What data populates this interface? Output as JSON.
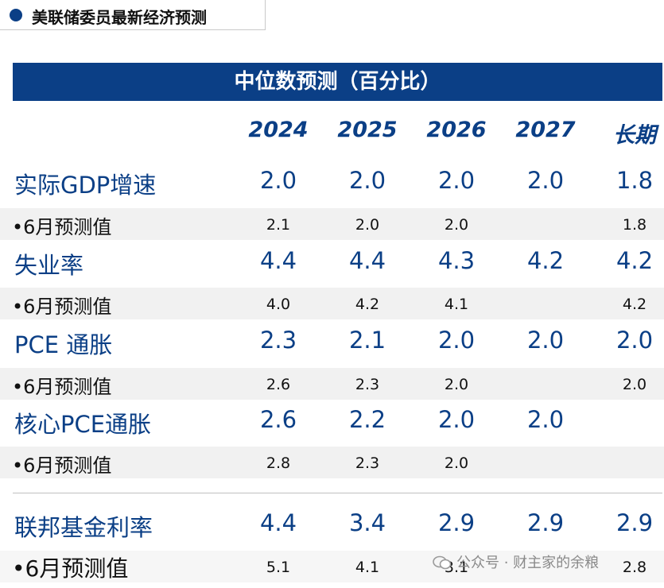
{
  "top_title": "美联储委员最新经济预测",
  "header": "中位数预测（百分比）",
  "columns": [
    "2024",
    "2025",
    "2026",
    "2027",
    "长期"
  ],
  "rows": [
    {
      "label": "实际GDP增速",
      "values": [
        "2.0",
        "2.0",
        "2.0",
        "2.0",
        "1.8"
      ]
    },
    {
      "label": "•6月预测值",
      "values": [
        "2.1",
        "2.0",
        "2.0",
        "",
        "1.8"
      ]
    },
    {
      "label": "失业率",
      "values": [
        "4.4",
        "4.4",
        "4.3",
        "4.2",
        "4.2"
      ]
    },
    {
      "label": "•6月预测值",
      "values": [
        "4.0",
        "4.2",
        "4.1",
        "",
        "4.2"
      ]
    },
    {
      "label": "PCE 通胀",
      "values": [
        "2.3",
        "2.1",
        "2.0",
        "2.0",
        "2.0"
      ]
    },
    {
      "label": "•6月预测值",
      "values": [
        "2.6",
        "2.3",
        "2.0",
        "",
        "2.0"
      ]
    },
    {
      "label": "核心PCE通胀",
      "values": [
        "2.6",
        "2.2",
        "2.0",
        "2.0",
        ""
      ]
    },
    {
      "label": "•6月预测值",
      "values": [
        "2.8",
        "2.3",
        "2.0",
        "",
        ""
      ]
    },
    {
      "label": "联邦基金利率",
      "values": [
        "4.4",
        "3.4",
        "2.9",
        "2.9",
        "2.9"
      ]
    },
    {
      "label": "•6月预测值",
      "values": [
        "5.1",
        "4.1",
        "3.1",
        "",
        "2.8"
      ]
    }
  ],
  "watermark": "公众号 · 财主家的余粮",
  "colors": {
    "navy": "#0b3f86",
    "row_shade": "#f1f1f1"
  }
}
